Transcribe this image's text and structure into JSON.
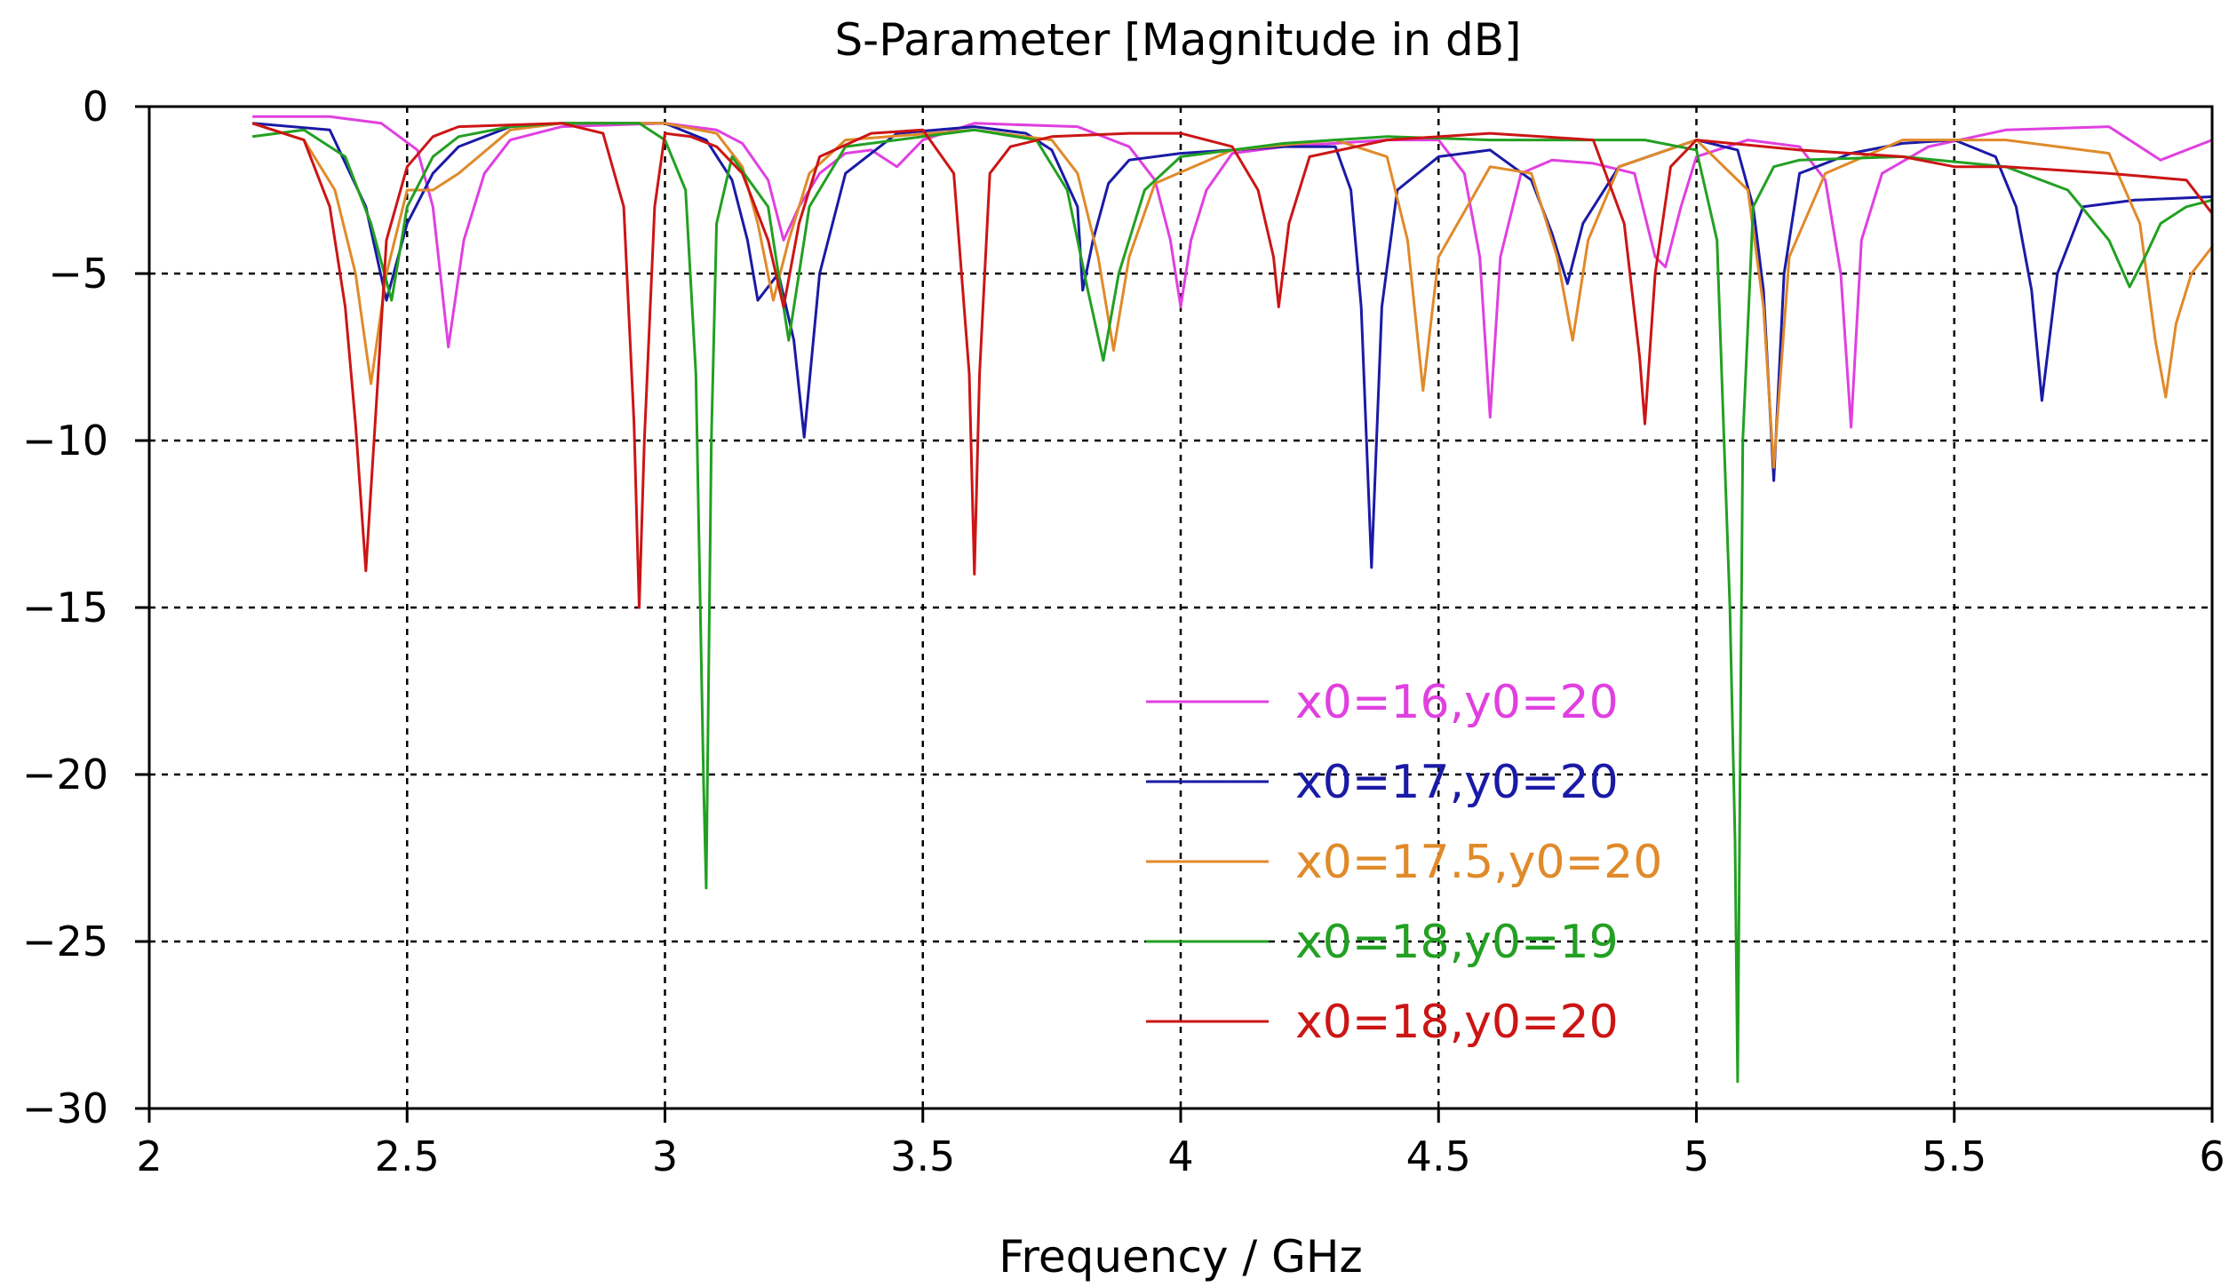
{
  "chart_data": {
    "type": "line",
    "title": "S-Parameter [Magnitude in dB]",
    "xlabel": "Frequency / GHz",
    "ylabel": "",
    "xlim": [
      2,
      6
    ],
    "ylim": [
      -30,
      0
    ],
    "xticks": [
      2,
      2.5,
      3,
      3.5,
      4,
      4.5,
      5,
      5.5,
      6
    ],
    "xtick_labels": [
      "2",
      "2.5",
      "3",
      "3.5",
      "4",
      "4.5",
      "5",
      "5.5",
      "6"
    ],
    "yticks": [
      0,
      -5,
      -10,
      -15,
      -20,
      -25,
      -30
    ],
    "ytick_labels": [
      "0",
      "−5",
      "−10",
      "−15",
      "−20",
      "−25",
      "−30"
    ],
    "grid": true,
    "legend_position": "center-right",
    "series": [
      {
        "name": "x0=16,y0=20",
        "color": "#e040e0",
        "x": [
          2.2,
          2.35,
          2.45,
          2.52,
          2.55,
          2.58,
          2.61,
          2.65,
          2.7,
          2.8,
          3.0,
          3.1,
          3.15,
          3.2,
          3.23,
          3.26,
          3.3,
          3.35,
          3.4,
          3.45,
          3.5,
          3.6,
          3.8,
          3.9,
          3.95,
          3.98,
          4.0,
          4.02,
          4.05,
          4.1,
          4.2,
          4.4,
          4.5,
          4.55,
          4.58,
          4.6,
          4.62,
          4.66,
          4.72,
          4.8,
          4.88,
          4.92,
          4.94,
          4.97,
          5.0,
          5.1,
          5.2,
          5.25,
          5.28,
          5.3,
          5.32,
          5.36,
          5.45,
          5.6,
          5.8,
          5.9,
          6.0
        ],
        "y": [
          -0.3,
          -0.3,
          -0.5,
          -1.3,
          -3.0,
          -7.2,
          -4.0,
          -2.0,
          -1.0,
          -0.6,
          -0.5,
          -0.7,
          -1.1,
          -2.2,
          -4.0,
          -3.0,
          -2.0,
          -1.4,
          -1.3,
          -1.8,
          -1.0,
          -0.5,
          -0.6,
          -1.2,
          -2.2,
          -4.0,
          -6.0,
          -4.0,
          -2.5,
          -1.4,
          -1.2,
          -1.0,
          -1.0,
          -2.0,
          -4.5,
          -9.3,
          -4.5,
          -2.0,
          -1.6,
          -1.7,
          -2.0,
          -4.5,
          -4.8,
          -3.0,
          -1.5,
          -1.0,
          -1.2,
          -2.2,
          -5.0,
          -9.6,
          -4.0,
          -2.0,
          -1.2,
          -0.7,
          -0.6,
          -1.6,
          -1.0
        ]
      },
      {
        "name": "x0=17,y0=20",
        "color": "#1a1aa6",
        "x": [
          2.2,
          2.35,
          2.42,
          2.46,
          2.5,
          2.55,
          2.6,
          2.7,
          2.8,
          3.0,
          3.08,
          3.13,
          3.16,
          3.18,
          3.22,
          3.25,
          3.27,
          3.3,
          3.35,
          3.45,
          3.6,
          3.7,
          3.75,
          3.8,
          3.81,
          3.83,
          3.86,
          3.9,
          4.0,
          4.2,
          4.3,
          4.33,
          4.35,
          4.37,
          4.39,
          4.42,
          4.5,
          4.6,
          4.68,
          4.72,
          4.75,
          4.78,
          4.85,
          5.0,
          5.08,
          5.11,
          5.13,
          5.15,
          5.17,
          5.2,
          5.3,
          5.4,
          5.5,
          5.58,
          5.62,
          5.65,
          5.67,
          5.7,
          5.75,
          5.85,
          6.0
        ],
        "y": [
          -0.5,
          -0.7,
          -3.0,
          -5.8,
          -3.5,
          -2.0,
          -1.2,
          -0.6,
          -0.5,
          -0.5,
          -1.0,
          -2.2,
          -4.0,
          -5.8,
          -5.0,
          -7.0,
          -9.9,
          -5.0,
          -2.0,
          -0.8,
          -0.6,
          -0.8,
          -1.3,
          -3.0,
          -5.5,
          -4.0,
          -2.3,
          -1.6,
          -1.4,
          -1.2,
          -1.2,
          -2.5,
          -6.0,
          -13.8,
          -6.0,
          -2.5,
          -1.5,
          -1.3,
          -2.2,
          -3.8,
          -5.3,
          -3.5,
          -1.8,
          -1.0,
          -1.3,
          -3.0,
          -5.5,
          -11.2,
          -5.0,
          -2.0,
          -1.4,
          -1.1,
          -1.0,
          -1.5,
          -3.0,
          -5.5,
          -8.8,
          -5.0,
          -3.0,
          -2.8,
          -2.7
        ]
      },
      {
        "name": "x0=17.5,y0=20",
        "color": "#e08a2a",
        "x": [
          2.2,
          2.3,
          2.36,
          2.4,
          2.43,
          2.46,
          2.5,
          2.55,
          2.6,
          2.7,
          2.8,
          3.0,
          3.1,
          3.15,
          3.18,
          3.21,
          3.24,
          3.28,
          3.35,
          3.6,
          3.75,
          3.8,
          3.84,
          3.87,
          3.9,
          3.95,
          4.1,
          4.3,
          4.4,
          4.44,
          4.47,
          4.5,
          4.6,
          4.68,
          4.73,
          4.76,
          4.79,
          4.85,
          5.0,
          5.1,
          5.13,
          5.15,
          5.18,
          5.25,
          5.4,
          5.6,
          5.8,
          5.86,
          5.89,
          5.91,
          5.93,
          5.96,
          6.0
        ],
        "y": [
          -0.5,
          -1.0,
          -2.5,
          -5.0,
          -8.3,
          -5.0,
          -2.5,
          -2.5,
          -2.0,
          -0.7,
          -0.5,
          -0.5,
          -0.8,
          -1.8,
          -3.5,
          -5.8,
          -4.0,
          -2.0,
          -1.0,
          -0.7,
          -1.0,
          -2.0,
          -4.5,
          -7.3,
          -4.5,
          -2.3,
          -1.3,
          -1.0,
          -1.5,
          -4.0,
          -8.5,
          -4.5,
          -1.8,
          -2.0,
          -4.5,
          -7.0,
          -4.0,
          -1.8,
          -1.0,
          -2.5,
          -6.0,
          -10.8,
          -4.5,
          -2.0,
          -1.0,
          -1.0,
          -1.4,
          -3.5,
          -7.0,
          -8.7,
          -6.5,
          -5.0,
          -4.2
        ]
      },
      {
        "name": "x0=18,y0=19",
        "color": "#22a022",
        "x": [
          2.2,
          2.3,
          2.38,
          2.43,
          2.47,
          2.5,
          2.55,
          2.6,
          2.7,
          2.8,
          2.95,
          3.0,
          3.04,
          3.06,
          3.075,
          3.08,
          3.09,
          3.1,
          3.13,
          3.2,
          3.24,
          3.28,
          3.35,
          3.6,
          3.72,
          3.78,
          3.82,
          3.85,
          3.88,
          3.93,
          4.0,
          4.2,
          4.4,
          4.6,
          4.9,
          5.0,
          5.04,
          5.065,
          5.075,
          5.08,
          5.09,
          5.11,
          5.15,
          5.2,
          5.4,
          5.6,
          5.72,
          5.8,
          5.84,
          5.87,
          5.9,
          5.95,
          6.0
        ],
        "y": [
          -0.9,
          -0.7,
          -1.5,
          -3.5,
          -5.8,
          -3.0,
          -1.5,
          -0.9,
          -0.6,
          -0.5,
          -0.5,
          -1.0,
          -2.5,
          -8.0,
          -20.3,
          -23.4,
          -10.0,
          -3.5,
          -1.5,
          -3.0,
          -7.0,
          -3.0,
          -1.2,
          -0.7,
          -1.0,
          -2.5,
          -5.5,
          -7.6,
          -5.0,
          -2.5,
          -1.5,
          -1.1,
          -0.9,
          -1.0,
          -1.0,
          -1.3,
          -4.0,
          -15.0,
          -22.0,
          -29.2,
          -10.0,
          -3.0,
          -1.8,
          -1.6,
          -1.5,
          -1.8,
          -2.5,
          -4.0,
          -5.4,
          -4.5,
          -3.5,
          -3.0,
          -2.8
        ]
      },
      {
        "name": "x0=18,y0=20",
        "color": "#cc1515",
        "x": [
          2.2,
          2.3,
          2.35,
          2.38,
          2.4,
          2.42,
          2.44,
          2.46,
          2.5,
          2.55,
          2.6,
          2.8,
          2.88,
          2.92,
          2.94,
          2.95,
          2.96,
          2.98,
          3.0,
          3.05,
          3.1,
          3.15,
          3.2,
          3.23,
          3.26,
          3.3,
          3.4,
          3.5,
          3.56,
          3.59,
          3.6,
          3.61,
          3.63,
          3.67,
          3.75,
          3.9,
          4.0,
          4.1,
          4.15,
          4.18,
          4.19,
          4.21,
          4.25,
          4.4,
          4.6,
          4.8,
          4.86,
          4.89,
          4.9,
          4.92,
          4.95,
          5.0,
          5.2,
          5.4,
          5.5,
          5.6,
          5.8,
          5.95,
          6.0
        ],
        "y": [
          -0.5,
          -1.0,
          -3.0,
          -6.0,
          -9.5,
          -13.9,
          -9.0,
          -4.0,
          -1.8,
          -0.9,
          -0.6,
          -0.5,
          -0.8,
          -3.0,
          -9.5,
          -15.0,
          -10.0,
          -3.0,
          -0.8,
          -0.9,
          -1.2,
          -2.0,
          -4.0,
          -6.0,
          -3.5,
          -1.5,
          -0.8,
          -0.7,
          -2.0,
          -8.0,
          -14.0,
          -8.0,
          -2.0,
          -1.2,
          -0.9,
          -0.8,
          -0.8,
          -1.2,
          -2.5,
          -4.5,
          -6.0,
          -3.5,
          -1.5,
          -1.0,
          -0.8,
          -1.0,
          -3.5,
          -7.5,
          -9.5,
          -5.0,
          -1.8,
          -1.0,
          -1.3,
          -1.5,
          -1.8,
          -1.8,
          -2.0,
          -2.2,
          -3.2
        ]
      }
    ]
  }
}
